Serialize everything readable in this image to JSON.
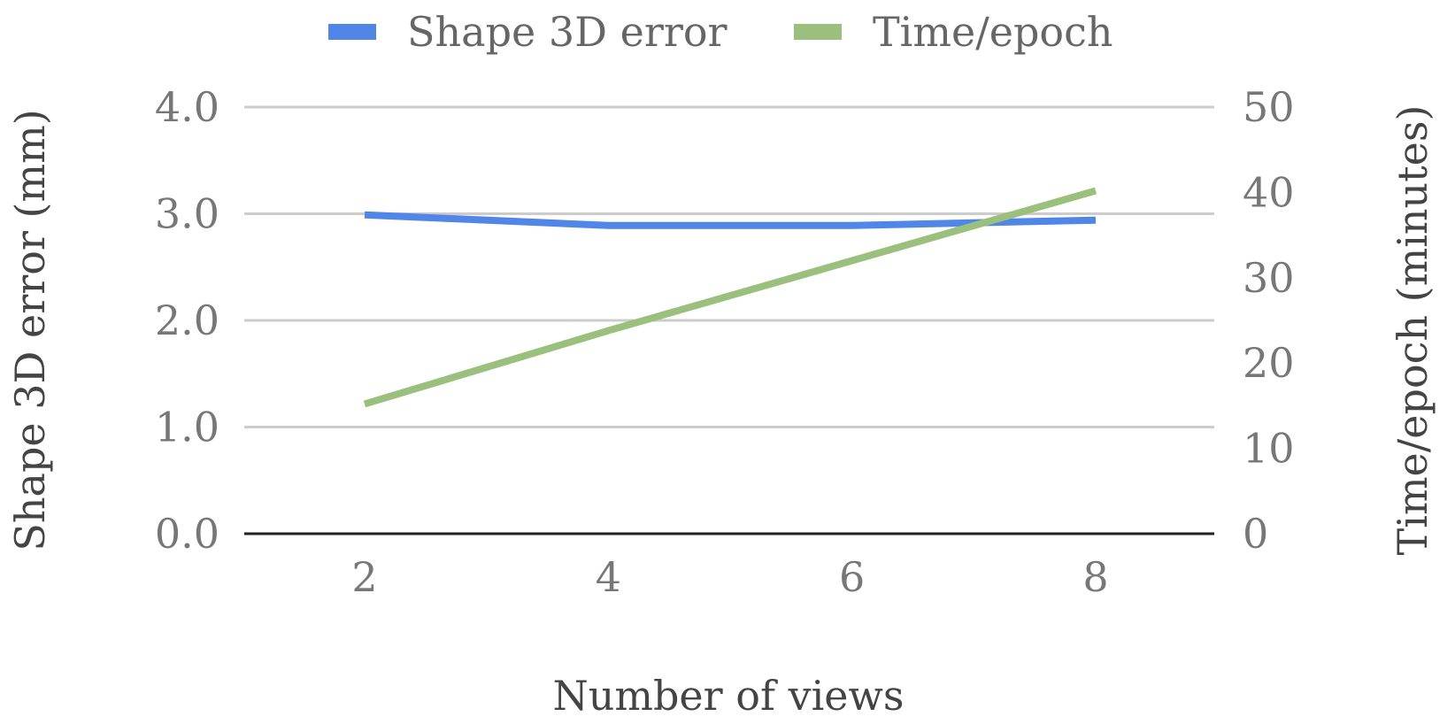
{
  "chart_data": {
    "type": "line",
    "x": [
      2,
      4,
      6,
      8
    ],
    "series": [
      {
        "name": "Shape 3D error",
        "axis": "left",
        "color": "#5086e8",
        "values": [
          2.99,
          2.89,
          2.89,
          2.94
        ]
      },
      {
        "name": "Time/epoch",
        "axis": "right",
        "color": "#9bc07d",
        "values": [
          15.2,
          23.8,
          32.0,
          40.2
        ]
      }
    ],
    "xlabel": "Number of views",
    "ylabel_left": "Shape 3D error (mm)",
    "ylabel_right": "Time/epoch (minutes)",
    "ylim_left": [
      0,
      4
    ],
    "ylim_right": [
      0,
      50
    ],
    "x_ticks": [
      "2",
      "4",
      "6",
      "8"
    ],
    "y_ticks_left": [
      "0.0",
      "1.0",
      "2.0",
      "3.0",
      "4.0"
    ],
    "y_ticks_right": [
      "0",
      "10",
      "20",
      "30",
      "40",
      "50"
    ],
    "grid": true,
    "legend_position": "top"
  }
}
